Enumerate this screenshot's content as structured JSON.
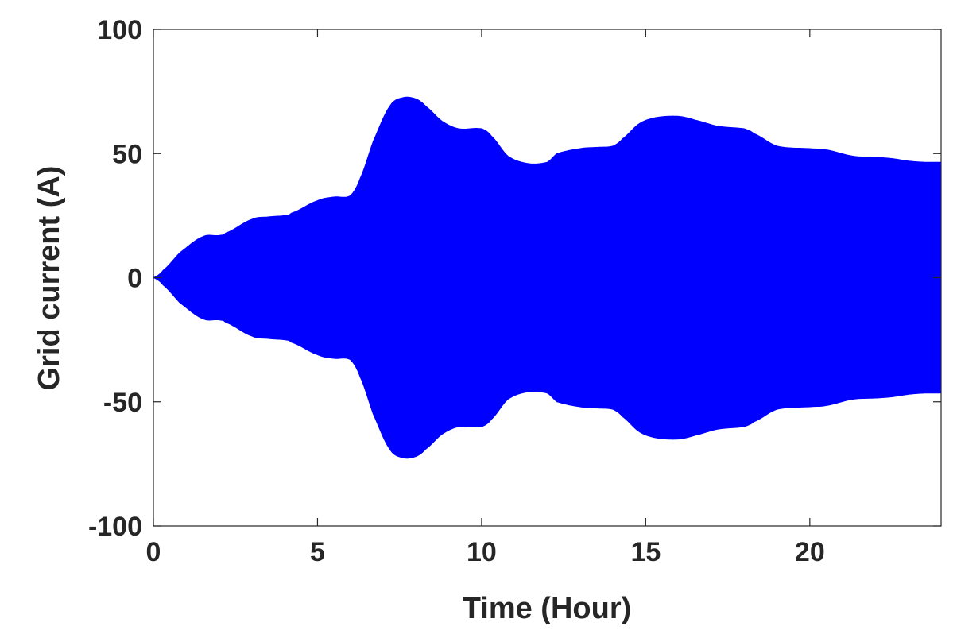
{
  "chart_data": {
    "type": "area",
    "title": "",
    "xlabel": "Time (Hour)",
    "ylabel": "Grid current (A)",
    "xlim": [
      0,
      24
    ],
    "ylim": [
      -100,
      100
    ],
    "xticks": [
      0,
      5,
      10,
      15,
      20
    ],
    "yticks": [
      -100,
      -50,
      0,
      50,
      100
    ],
    "xtick_labels": [
      "0",
      "5",
      "10",
      "15",
      "20"
    ],
    "ytick_labels": [
      "-100",
      "-50",
      "0",
      "50",
      "100"
    ],
    "grid": false,
    "legend": "none",
    "colors": {
      "series": "#0000ff",
      "axes": "#262626"
    },
    "series": [
      {
        "style": "symmetric envelope of oscillating current (filled between -amplitude and +amplitude)",
        "x": [
          0,
          0.3,
          0.8,
          1.5,
          2.0,
          2.2,
          3.0,
          3.5,
          4.0,
          4.2,
          5.0,
          5.5,
          6.0,
          6.3,
          6.7,
          7.2,
          7.6,
          8.0,
          8.3,
          8.8,
          9.3,
          10.0,
          10.3,
          10.8,
          11.4,
          12.0,
          12.3,
          13.0,
          13.5,
          14.0,
          14.3,
          14.8,
          15.3,
          16.0,
          16.5,
          17.2,
          18.0,
          18.3,
          19.0,
          20.0,
          20.5,
          21.3,
          22.0,
          22.5,
          23.0,
          23.5,
          24.0
        ],
        "amplitude": [
          0,
          3,
          10,
          16.5,
          17,
          18,
          23.5,
          24.5,
          25,
          26,
          31,
          32.5,
          33,
          40,
          55,
          69,
          72.5,
          72,
          69,
          63,
          60,
          60,
          57,
          49,
          46,
          46.5,
          50,
          52,
          52.5,
          53,
          56,
          62,
          64.5,
          65,
          63.5,
          61,
          60,
          58,
          53,
          52,
          51.5,
          49,
          48.5,
          48,
          47,
          46.5,
          46.5
        ]
      }
    ]
  }
}
